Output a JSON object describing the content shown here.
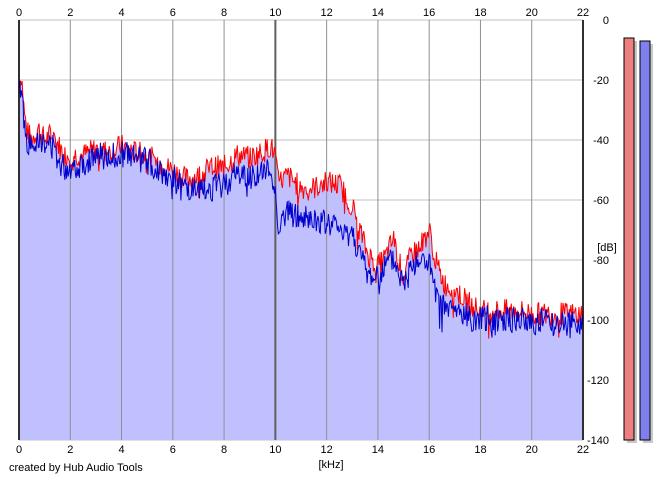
{
  "credit": "created by Hub Audio Tools",
  "colors": {
    "background": "#ffffff",
    "grid": "#c0c0c0",
    "fill": "#c0c0ff",
    "left_channel": "#ff0000",
    "right_channel": "#0000cc",
    "left_meter": "#ee7f7f",
    "right_meter": "#7f7fee"
  },
  "chart_data": {
    "type": "area",
    "xlabel": "[kHz]",
    "ylabel": "[dB]",
    "xlim": [
      0,
      22
    ],
    "ylim": [
      -140,
      0
    ],
    "x_ticks": [
      "0",
      "2",
      "4",
      "6",
      "8",
      "10",
      "12",
      "14",
      "16",
      "18",
      "20",
      "22"
    ],
    "y_ticks": [
      "0",
      "-20",
      "-40",
      "-60",
      "-80",
      "-100",
      "-120",
      "-140"
    ],
    "grid": true,
    "series": [
      {
        "color": "#ff0000",
        "x": [
          0,
          0.1,
          0.2,
          0.3,
          0.5,
          0.75,
          1.0,
          1.25,
          1.5,
          1.75,
          2.0,
          2.5,
          3.0,
          3.5,
          4.0,
          4.5,
          5.0,
          5.5,
          6.0,
          6.5,
          7.0,
          7.5,
          8.0,
          8.5,
          9.0,
          9.5,
          9.8,
          10.0,
          10.1,
          10.5,
          11.0,
          11.5,
          12.0,
          12.5,
          13.0,
          13.3,
          13.6,
          14.0,
          14.3,
          14.6,
          15.0,
          15.3,
          15.6,
          16.0,
          16.3,
          16.6,
          17.0,
          17.5,
          18.0,
          18.5,
          19.0,
          19.5,
          20.0,
          20.5,
          21.0,
          21.5,
          22.0
        ],
        "y": [
          -23,
          -18,
          -30,
          -37,
          -40,
          -36,
          -40,
          -38,
          -41,
          -45,
          -45,
          -45,
          -43,
          -44,
          -42,
          -44,
          -45,
          -48,
          -50,
          -53,
          -52,
          -49,
          -49,
          -45,
          -46,
          -44,
          -42,
          -45,
          -54,
          -52,
          -56,
          -56,
          -54,
          -55,
          -62,
          -70,
          -78,
          -82,
          -79,
          -73,
          -86,
          -78,
          -76,
          -70,
          -82,
          -88,
          -90,
          -94,
          -97,
          -97,
          -97,
          -97,
          -98,
          -98,
          -98,
          -98,
          -98
        ]
      },
      {
        "color": "#0000cc",
        "x": [
          0,
          0.1,
          0.2,
          0.3,
          0.5,
          0.75,
          1.0,
          1.25,
          1.5,
          1.75,
          2.0,
          2.5,
          3.0,
          3.5,
          4.0,
          4.5,
          5.0,
          5.5,
          6.0,
          6.5,
          7.0,
          7.5,
          8.0,
          8.5,
          9.0,
          9.5,
          9.8,
          10.0,
          10.1,
          10.5,
          11.0,
          11.5,
          12.0,
          12.5,
          13.0,
          13.3,
          13.6,
          14.0,
          14.3,
          14.6,
          15.0,
          15.3,
          15.6,
          16.0,
          16.3,
          16.6,
          17.0,
          17.5,
          18.0,
          18.5,
          19.0,
          19.5,
          20.0,
          20.5,
          21.0,
          21.5,
          22.0
        ],
        "y": [
          -25,
          -21,
          -34,
          -40,
          -43,
          -38,
          -43,
          -41,
          -46,
          -49,
          -49,
          -48,
          -45,
          -46,
          -44,
          -46,
          -47,
          -50,
          -53,
          -56,
          -58,
          -56,
          -55,
          -51,
          -52,
          -51,
          -50,
          -58,
          -68,
          -64,
          -66,
          -67,
          -68,
          -69,
          -71,
          -78,
          -85,
          -86,
          -82,
          -80,
          -88,
          -82,
          -80,
          -81,
          -94,
          -96,
          -97,
          -99,
          -100,
          -99,
          -100,
          -100,
          -101,
          -100,
          -101,
          -102,
          -101
        ]
      }
    ],
    "meters": [
      {
        "channel": "left",
        "peak_db": -6
      },
      {
        "channel": "right",
        "peak_db": -7
      }
    ]
  }
}
